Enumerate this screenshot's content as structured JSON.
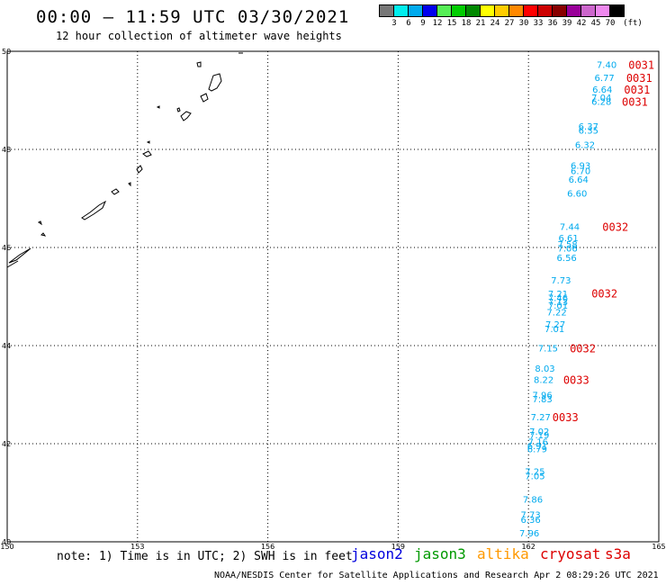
{
  "header": {
    "title": "00:00 – 11:59 UTC 03/30/2021",
    "subtitle": "12 hour collection of altimeter wave heights"
  },
  "colorbar": {
    "unit": "(ft)",
    "labels": [
      "3",
      "6",
      "9",
      "12",
      "15",
      "18",
      "21",
      "24",
      "27",
      "30",
      "33",
      "36",
      "39",
      "42",
      "45",
      "70"
    ],
    "colors": [
      "#777777",
      "#00eeee",
      "#00aaee",
      "#0000ee",
      "#55ee55",
      "#00cc00",
      "#008800",
      "#ffff00",
      "#ffcc00",
      "#ff8800",
      "#ff0000",
      "#cc0000",
      "#880000",
      "#990099",
      "#cc66cc",
      "#ee88ee",
      "#000000"
    ]
  },
  "note": "note: 1) Time is in UTC; 2) SWH is in feet",
  "satellites": [
    {
      "name": "jason2",
      "color": "#0000dd"
    },
    {
      "name": "jason3",
      "color": "#009900"
    },
    {
      "name": "altika",
      "color": "#ff9900"
    },
    {
      "name": "cryosat",
      "color": "#dd0000"
    },
    {
      "name": "s3a",
      "color": "#dd0000"
    }
  ],
  "footer": "NOAA/NESDIS Center for Satellite Applications and Research   Apr  2 08:29:26 UTC 2021",
  "chart_data": {
    "type": "scatter",
    "xlim": [
      150,
      165
    ],
    "ylim": [
      40,
      50
    ],
    "x_ticks": [
      "150",
      "153",
      "156",
      "159",
      "162",
      "165"
    ],
    "y_ticks": [
      "40",
      "42",
      "44",
      "46",
      "48",
      "50"
    ],
    "grid": true,
    "point_color": "#00aaee",
    "time_color": "#dd0000",
    "points": [
      {
        "x": 163.8,
        "y": 49.73,
        "label": "7.40"
      },
      {
        "x": 163.75,
        "y": 49.47,
        "label": "6.77"
      },
      {
        "x": 163.7,
        "y": 49.23,
        "label": "6.64"
      },
      {
        "x": 163.68,
        "y": 49.06,
        "label": "7.04"
      },
      {
        "x": 163.68,
        "y": 48.98,
        "label": "6.28"
      },
      {
        "x": 163.38,
        "y": 48.48,
        "label": "6.37"
      },
      {
        "x": 163.38,
        "y": 48.39,
        "label": "6.35"
      },
      {
        "x": 163.3,
        "y": 48.1,
        "label": "6.32"
      },
      {
        "x": 163.2,
        "y": 47.68,
        "label": "6.93"
      },
      {
        "x": 163.2,
        "y": 47.57,
        "label": "6.70"
      },
      {
        "x": 163.15,
        "y": 47.39,
        "label": "6.64"
      },
      {
        "x": 163.12,
        "y": 47.11,
        "label": "6.60"
      },
      {
        "x": 162.95,
        "y": 46.43,
        "label": "7.44"
      },
      {
        "x": 162.92,
        "y": 46.2,
        "label": "6.61"
      },
      {
        "x": 162.9,
        "y": 46.07,
        "label": "7.58"
      },
      {
        "x": 162.9,
        "y": 45.99,
        "label": "7.06"
      },
      {
        "x": 162.88,
        "y": 45.8,
        "label": "6.56"
      },
      {
        "x": 162.75,
        "y": 45.34,
        "label": "7.73"
      },
      {
        "x": 162.68,
        "y": 45.06,
        "label": "7.21"
      },
      {
        "x": 162.68,
        "y": 44.98,
        "label": "7.46"
      },
      {
        "x": 162.68,
        "y": 44.9,
        "label": "7.13"
      },
      {
        "x": 162.68,
        "y": 44.83,
        "label": "7.01"
      },
      {
        "x": 162.65,
        "y": 44.69,
        "label": "7.22"
      },
      {
        "x": 162.62,
        "y": 44.44,
        "label": "7.27"
      },
      {
        "x": 162.6,
        "y": 44.35,
        "label": "7.01"
      },
      {
        "x": 162.45,
        "y": 43.95,
        "label": "7.15"
      },
      {
        "x": 162.38,
        "y": 43.54,
        "label": "8.03"
      },
      {
        "x": 162.35,
        "y": 43.31,
        "label": "8.22"
      },
      {
        "x": 162.32,
        "y": 43.0,
        "label": "7.96"
      },
      {
        "x": 162.32,
        "y": 42.92,
        "label": "7.83"
      },
      {
        "x": 162.28,
        "y": 42.55,
        "label": "7.27"
      },
      {
        "x": 162.25,
        "y": 42.26,
        "label": "7.02"
      },
      {
        "x": 162.25,
        "y": 42.18,
        "label": "7.19"
      },
      {
        "x": 162.22,
        "y": 42.05,
        "label": "7.16"
      },
      {
        "x": 162.2,
        "y": 41.96,
        "label": "6.91"
      },
      {
        "x": 162.2,
        "y": 41.9,
        "label": "6.79"
      },
      {
        "x": 162.15,
        "y": 41.44,
        "label": "7.25"
      },
      {
        "x": 162.15,
        "y": 41.35,
        "label": "7.05"
      },
      {
        "x": 162.1,
        "y": 40.87,
        "label": "7.86"
      },
      {
        "x": 162.05,
        "y": 40.56,
        "label": "7.73"
      },
      {
        "x": 162.05,
        "y": 40.46,
        "label": "6.36"
      },
      {
        "x": 162.02,
        "y": 40.18,
        "label": "7.96"
      }
    ],
    "time_labels": [
      {
        "x": 164.6,
        "y": 49.73,
        "label": "0031"
      },
      {
        "x": 164.55,
        "y": 49.47,
        "label": "0031"
      },
      {
        "x": 164.5,
        "y": 49.23,
        "label": "0031"
      },
      {
        "x": 164.45,
        "y": 48.98,
        "label": "0031"
      },
      {
        "x": 164.0,
        "y": 46.43,
        "label": "0032"
      },
      {
        "x": 163.75,
        "y": 45.07,
        "label": "0032"
      },
      {
        "x": 163.25,
        "y": 43.95,
        "label": "0032"
      },
      {
        "x": 163.1,
        "y": 43.31,
        "label": "0033"
      },
      {
        "x": 162.85,
        "y": 42.55,
        "label": "0033"
      }
    ]
  }
}
